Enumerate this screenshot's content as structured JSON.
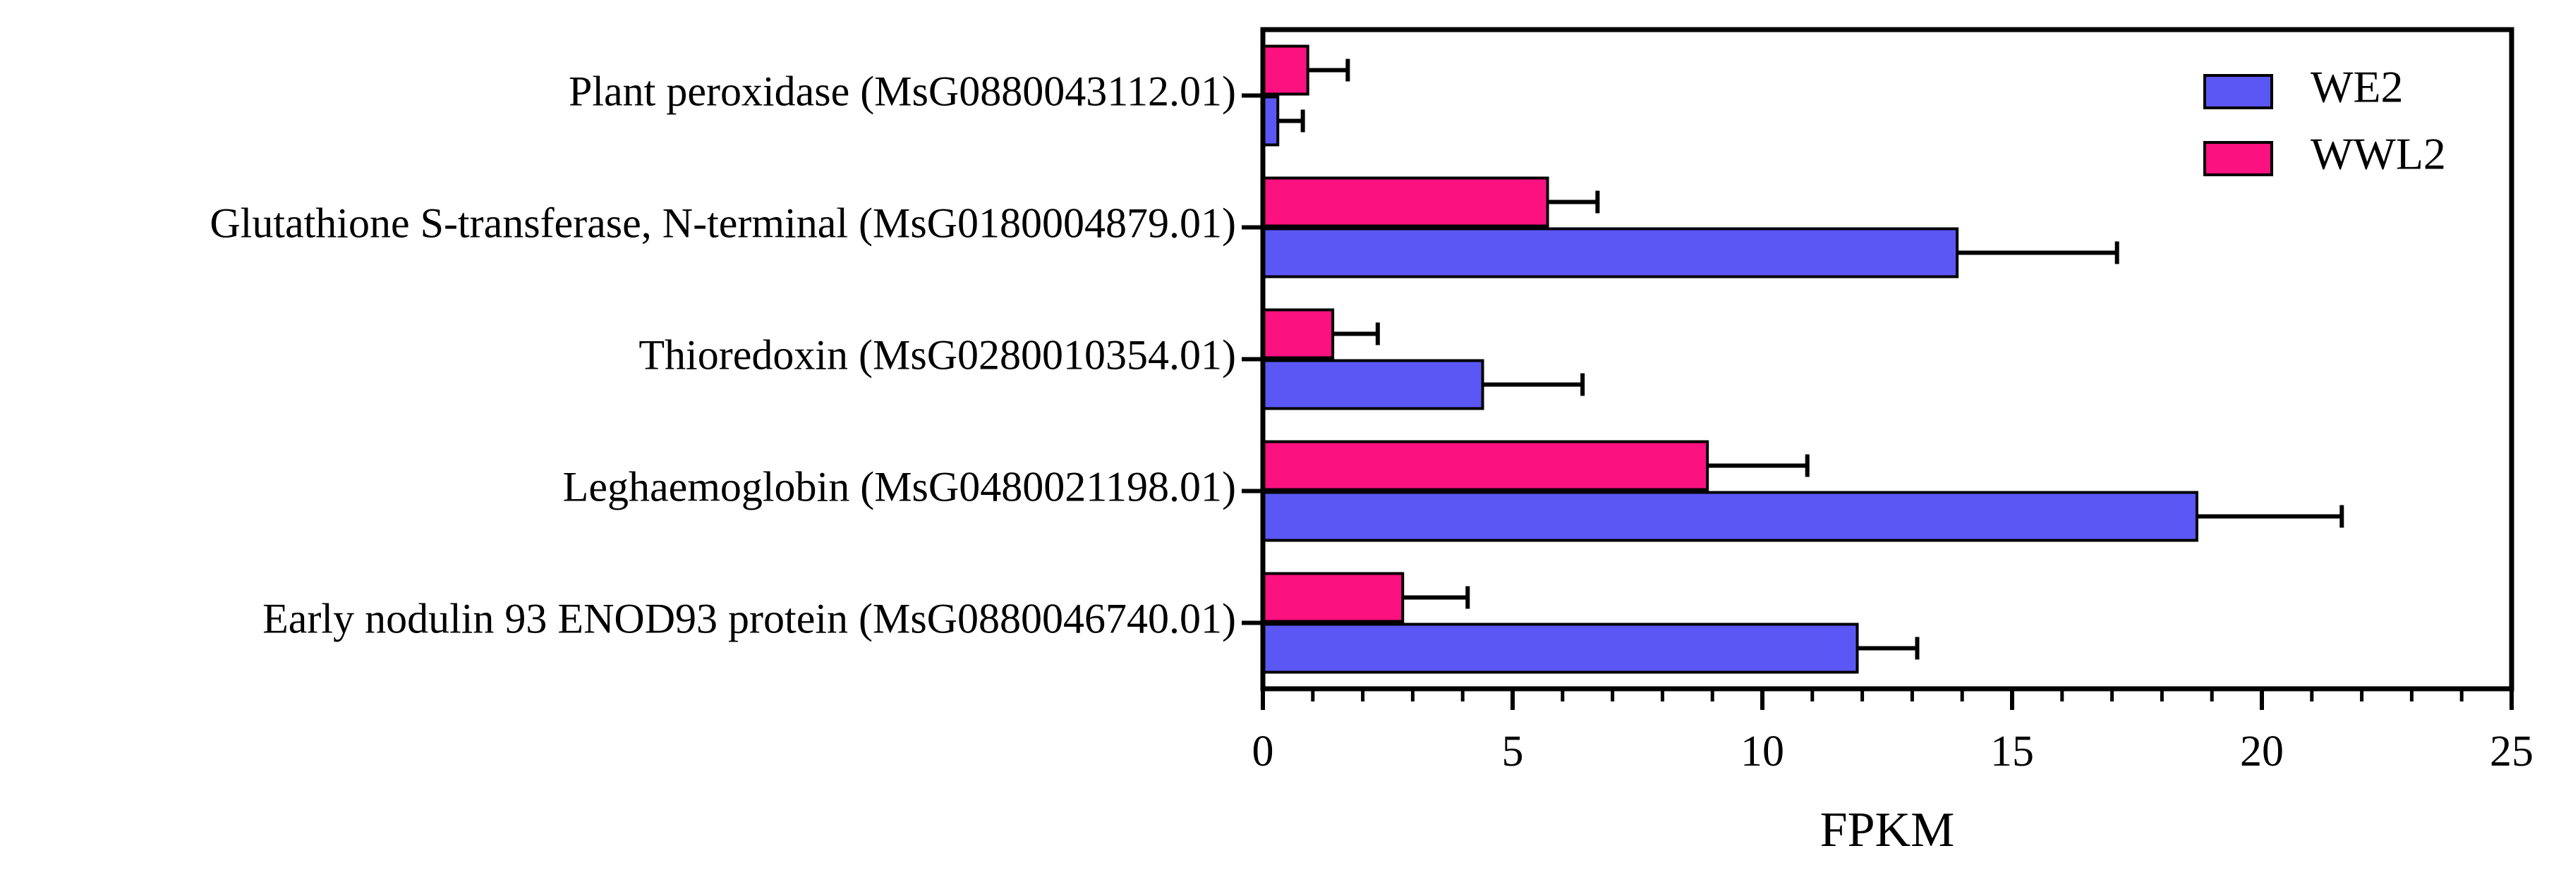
{
  "chart_data": {
    "type": "hbar",
    "xlabel": "FPKM",
    "categories": [
      "Plant peroxidase (MsG0880043112.01)",
      "Glutathione S-transferase, N-terminal (MsG0180004879.01)",
      "Thioredoxin (MsG0280010354.01)",
      "Leghaemoglobin (MsG0480021198.01)",
      "Early nodulin 93 ENOD93 protein (MsG0880046740.01)"
    ],
    "series": [
      {
        "name": "WE2",
        "color": "#5b57f5",
        "values": [
          0.3,
          13.9,
          4.4,
          18.7,
          11.9
        ],
        "errors": [
          0.5,
          3.2,
          2.0,
          2.9,
          1.2
        ]
      },
      {
        "name": "WWL2",
        "color": "#fb117f",
        "values": [
          0.9,
          5.7,
          1.4,
          8.9,
          2.8
        ],
        "errors": [
          0.8,
          1.0,
          0.9,
          2.0,
          1.3
        ]
      }
    ],
    "xlim": [
      0,
      25
    ],
    "xticks": [
      0,
      5,
      10,
      15,
      20,
      25
    ],
    "legend": "upper right"
  }
}
